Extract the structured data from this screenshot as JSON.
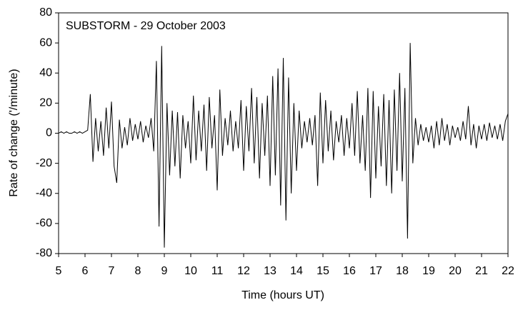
{
  "chart_data": {
    "type": "line",
    "title": "SUBSTORM - 29 October 2003",
    "x_label": "Time (hours UT)",
    "y_label": "Rate of change ('/minute)",
    "x": [
      5.0,
      5.1,
      5.2,
      5.3,
      5.4,
      5.5,
      5.6,
      5.7,
      5.8,
      5.9,
      6.0,
      6.1,
      6.2,
      6.3,
      6.4,
      6.5,
      6.6,
      6.7,
      6.8,
      6.9,
      7.0,
      7.1,
      7.2,
      7.3,
      7.4,
      7.5,
      7.6,
      7.7,
      7.8,
      7.9,
      8.0,
      8.1,
      8.2,
      8.3,
      8.4,
      8.5,
      8.6,
      8.7,
      8.8,
      8.9,
      9.0,
      9.1,
      9.2,
      9.3,
      9.4,
      9.5,
      9.6,
      9.7,
      9.8,
      9.9,
      10.0,
      10.1,
      10.2,
      10.3,
      10.4,
      10.5,
      10.6,
      10.7,
      10.8,
      10.9,
      11.0,
      11.1,
      11.2,
      11.3,
      11.4,
      11.5,
      11.6,
      11.7,
      11.8,
      11.9,
      12.0,
      12.1,
      12.2,
      12.3,
      12.4,
      12.5,
      12.6,
      12.7,
      12.8,
      12.9,
      13.0,
      13.1,
      13.2,
      13.3,
      13.4,
      13.5,
      13.6,
      13.7,
      13.8,
      13.9,
      14.0,
      14.1,
      14.2,
      14.3,
      14.4,
      14.5,
      14.6,
      14.7,
      14.8,
      14.9,
      15.0,
      15.1,
      15.2,
      15.3,
      15.4,
      15.5,
      15.6,
      15.7,
      15.8,
      15.9,
      16.0,
      16.1,
      16.2,
      16.3,
      16.4,
      16.5,
      16.6,
      16.7,
      16.8,
      16.9,
      17.0,
      17.1,
      17.2,
      17.3,
      17.4,
      17.5,
      17.6,
      17.7,
      17.8,
      17.9,
      18.0,
      18.1,
      18.2,
      18.3,
      18.4,
      18.5,
      18.6,
      18.7,
      18.8,
      18.9,
      19.0,
      19.1,
      19.2,
      19.3,
      19.4,
      19.5,
      19.6,
      19.7,
      19.8,
      19.9,
      20.0,
      20.1,
      20.2,
      20.3,
      20.4,
      20.5,
      20.6,
      20.7,
      20.8,
      20.9,
      21.0,
      21.1,
      21.2,
      21.3,
      21.4,
      21.5,
      21.6,
      21.7,
      21.8,
      21.9,
      22.0
    ],
    "series": [
      {
        "color": "#000000",
        "values": [
          0,
          1,
          0,
          1,
          0,
          0,
          1,
          0,
          1,
          0,
          1,
          2,
          26,
          -19,
          10,
          -12,
          8,
          -15,
          17,
          -10,
          21,
          -22,
          -33,
          9,
          -10,
          4,
          -8,
          10,
          -5,
          6,
          -4,
          8,
          -6,
          5,
          -3,
          10,
          -12,
          48,
          -62,
          58,
          -76,
          20,
          -28,
          15,
          -22,
          14,
          -30,
          12,
          -10,
          8,
          -20,
          25,
          -18,
          15,
          -12,
          19,
          -25,
          24,
          -10,
          12,
          -38,
          29,
          -15,
          10,
          -8,
          15,
          -12,
          8,
          -10,
          22,
          -25,
          18,
          -12,
          30,
          -20,
          24,
          -30,
          20,
          -15,
          25,
          -35,
          38,
          -28,
          43,
          -48,
          50,
          -58,
          37,
          -40,
          20,
          -25,
          15,
          -10,
          8,
          -6,
          10,
          -8,
          12,
          -35,
          27,
          -20,
          22,
          -12,
          15,
          -18,
          8,
          -6,
          12,
          -15,
          10,
          -10,
          20,
          -15,
          28,
          -20,
          12,
          -25,
          30,
          -43,
          28,
          -30,
          18,
          -22,
          26,
          -35,
          22,
          -40,
          29,
          -25,
          40,
          -32,
          30,
          -70,
          60,
          -20,
          10,
          -8,
          6,
          -5,
          4,
          -6,
          5,
          -10,
          8,
          -8,
          10,
          -5,
          6,
          -8,
          5,
          -3,
          4,
          -5,
          8,
          -4,
          18,
          -8,
          6,
          -10,
          5,
          -4,
          6,
          -5,
          7,
          -3,
          5,
          -4,
          6,
          -5,
          8,
          13
        ]
      }
    ],
    "xlim": [
      5,
      22
    ],
    "xticks": [
      5,
      6,
      7,
      8,
      9,
      10,
      11,
      12,
      13,
      14,
      15,
      16,
      17,
      18,
      19,
      20,
      21,
      22
    ],
    "ylim": [
      -80,
      80
    ],
    "yticks": [
      -80,
      -60,
      -40,
      -20,
      0,
      20,
      40,
      60,
      80
    ],
    "grid": false
  }
}
